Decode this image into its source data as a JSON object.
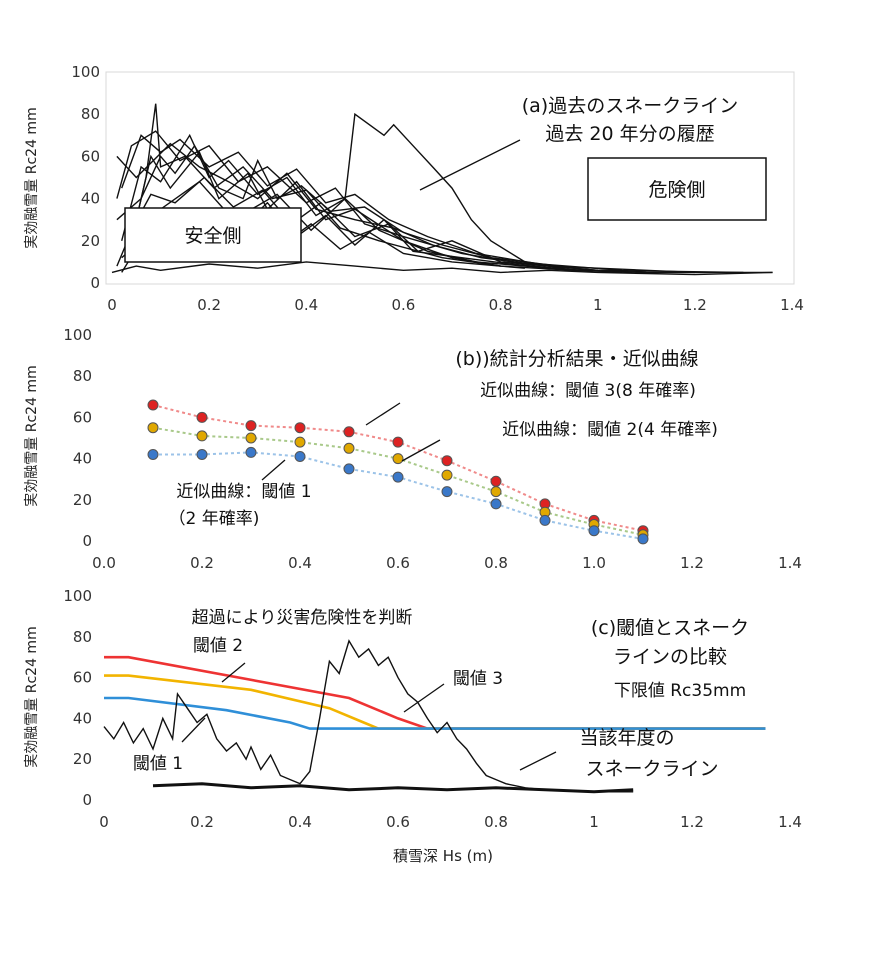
{
  "chart_data": [
    {
      "type": "line",
      "id": "a",
      "xlim": [
        0,
        1.4
      ],
      "ylim": [
        0,
        100
      ],
      "xticks": [
        "0",
        "0.2",
        "0.4",
        "0.6",
        "0.8",
        "1",
        "1.2",
        "1.4"
      ],
      "yticks": [
        "0",
        "20",
        "40",
        "60",
        "80",
        "100"
      ],
      "ylabel": "実効融雪量 Rc24 mm",
      "annotation_title": "(a)過去のスネークライン",
      "annotation_sub": "過去 20 年分の履歴",
      "box_safe": "安全側",
      "box_danger": "危険側",
      "series": [
        {
          "values": [
            [
              0.01,
              8
            ],
            [
              0.05,
              30
            ],
            [
              0.08,
              60
            ],
            [
              0.12,
              45
            ],
            [
              0.18,
              62
            ],
            [
              0.22,
              40
            ],
            [
              0.28,
              52
            ],
            [
              0.32,
              35
            ],
            [
              0.38,
              48
            ],
            [
              0.44,
              30
            ],
            [
              0.5,
              35
            ],
            [
              0.6,
              20
            ],
            [
              0.7,
              12
            ],
            [
              0.8,
              8
            ],
            [
              0.95,
              6
            ],
            [
              1.1,
              5
            ],
            [
              1.36,
              5
            ]
          ]
        },
        {
          "values": [
            [
              0.02,
              20
            ],
            [
              0.06,
              55
            ],
            [
              0.1,
              48
            ],
            [
              0.16,
              70
            ],
            [
              0.2,
              50
            ],
            [
              0.24,
              58
            ],
            [
              0.3,
              42
            ],
            [
              0.36,
              50
            ],
            [
              0.42,
              32
            ],
            [
              0.48,
              40
            ],
            [
              0.55,
              25
            ],
            [
              0.65,
              15
            ],
            [
              0.75,
              10
            ],
            [
              0.9,
              7
            ],
            [
              1.05,
              5
            ]
          ]
        },
        {
          "values": [
            [
              0.01,
              40
            ],
            [
              0.04,
              65
            ],
            [
              0.09,
              72
            ],
            [
              0.14,
              58
            ],
            [
              0.2,
              65
            ],
            [
              0.26,
              48
            ],
            [
              0.32,
              55
            ],
            [
              0.4,
              38
            ],
            [
              0.46,
              45
            ],
            [
              0.52,
              28
            ],
            [
              0.6,
              22
            ],
            [
              0.72,
              14
            ],
            [
              0.85,
              9
            ],
            [
              1.0,
              6
            ]
          ]
        },
        {
          "values": [
            [
              0.03,
              10
            ],
            [
              0.07,
              50
            ],
            [
              0.09,
              85
            ],
            [
              0.1,
              55
            ],
            [
              0.15,
              60
            ],
            [
              0.21,
              45
            ],
            [
              0.27,
              55
            ],
            [
              0.33,
              40
            ],
            [
              0.4,
              44
            ],
            [
              0.47,
              26
            ],
            [
              0.55,
              20
            ],
            [
              0.68,
              12
            ],
            [
              0.8,
              8
            ]
          ]
        },
        {
          "values": [
            [
              0.02,
              5
            ],
            [
              0.1,
              35
            ],
            [
              0.18,
              48
            ],
            [
              0.25,
              30
            ],
            [
              0.34,
              42
            ],
            [
              0.41,
              25
            ],
            [
              0.48,
              40
            ],
            [
              0.5,
              80
            ],
            [
              0.56,
              70
            ],
            [
              0.58,
              75
            ],
            [
              0.62,
              65
            ],
            [
              0.66,
              55
            ],
            [
              0.7,
              45
            ],
            [
              0.74,
              30
            ],
            [
              0.78,
              20
            ],
            [
              0.85,
              10
            ],
            [
              0.95,
              6
            ],
            [
              1.1,
              5
            ]
          ]
        },
        {
          "values": [
            [
              0.01,
              60
            ],
            [
              0.05,
              50
            ],
            [
              0.12,
              66
            ],
            [
              0.18,
              55
            ],
            [
              0.24,
              48
            ],
            [
              0.3,
              40
            ],
            [
              0.36,
              52
            ],
            [
              0.42,
              35
            ],
            [
              0.5,
              30
            ],
            [
              0.58,
              26
            ],
            [
              0.66,
              18
            ],
            [
              0.76,
              12
            ],
            [
              0.9,
              8
            ],
            [
              1.2,
              5
            ]
          ]
        },
        {
          "values": [
            [
              0.04,
              25
            ],
            [
              0.08,
              42
            ],
            [
              0.13,
              38
            ],
            [
              0.19,
              50
            ],
            [
              0.25,
              36
            ],
            [
              0.31,
              44
            ],
            [
              0.37,
              28
            ],
            [
              0.43,
              38
            ],
            [
              0.5,
              22
            ],
            [
              0.57,
              28
            ],
            [
              0.63,
              15
            ],
            [
              0.7,
              20
            ],
            [
              0.8,
              10
            ],
            [
              1.0,
              6
            ],
            [
              1.3,
              5
            ]
          ]
        },
        {
          "values": [
            [
              0.02,
              12
            ],
            [
              0.07,
              22
            ],
            [
              0.11,
              18
            ],
            [
              0.17,
              30
            ],
            [
              0.23,
              20
            ],
            [
              0.29,
              32
            ],
            [
              0.35,
              18
            ],
            [
              0.41,
              28
            ],
            [
              0.47,
              16
            ],
            [
              0.53,
              24
            ],
            [
              0.6,
              14
            ],
            [
              0.7,
              10
            ],
            [
              0.85,
              7
            ]
          ]
        },
        {
          "values": [
            [
              0.01,
              30
            ],
            [
              0.06,
              40
            ],
            [
              0.1,
              60
            ],
            [
              0.13,
              52
            ],
            [
              0.17,
              65
            ],
            [
              0.22,
              45
            ],
            [
              0.27,
              40
            ],
            [
              0.3,
              58
            ],
            [
              0.34,
              40
            ],
            [
              0.39,
              46
            ],
            [
              0.45,
              34
            ],
            [
              0.52,
              36
            ],
            [
              0.6,
              24
            ],
            [
              0.68,
              18
            ],
            [
              0.78,
              12
            ],
            [
              0.92,
              8
            ]
          ]
        },
        {
          "values": [
            [
              0.0,
              5
            ],
            [
              0.05,
              8
            ],
            [
              0.1,
              6
            ],
            [
              0.2,
              9
            ],
            [
              0.3,
              7
            ],
            [
              0.4,
              10
            ],
            [
              0.5,
              8
            ],
            [
              0.6,
              6
            ],
            [
              0.7,
              7
            ],
            [
              0.8,
              5
            ],
            [
              0.9,
              6
            ],
            [
              1.0,
              5
            ],
            [
              1.2,
              4
            ],
            [
              1.36,
              5
            ]
          ]
        },
        {
          "values": [
            [
              0.03,
              15
            ],
            [
              0.08,
              28
            ],
            [
              0.14,
              22
            ],
            [
              0.2,
              35
            ],
            [
              0.26,
              25
            ],
            [
              0.32,
              38
            ],
            [
              0.38,
              22
            ],
            [
              0.44,
              32
            ],
            [
              0.5,
              18
            ],
            [
              0.56,
              30
            ],
            [
              0.62,
              15
            ],
            [
              0.72,
              12
            ],
            [
              0.82,
              9
            ],
            [
              0.96,
              6
            ]
          ]
        },
        {
          "values": [
            [
              0.02,
              45
            ],
            [
              0.06,
              70
            ],
            [
              0.1,
              62
            ],
            [
              0.14,
              68
            ],
            [
              0.2,
              55
            ],
            [
              0.26,
              62
            ],
            [
              0.32,
              46
            ],
            [
              0.38,
              54
            ],
            [
              0.44,
              38
            ],
            [
              0.5,
              42
            ],
            [
              0.57,
              30
            ],
            [
              0.65,
              22
            ],
            [
              0.75,
              14
            ],
            [
              0.88,
              9
            ],
            [
              1.05,
              6
            ]
          ]
        }
      ]
    },
    {
      "type": "line",
      "id": "b",
      "xlim": [
        0,
        1.4
      ],
      "ylim": [
        0,
        100
      ],
      "xticks": [
        "0.0",
        "0.2",
        "0.4",
        "0.6",
        "0.8",
        "1.0",
        "1.2",
        "1.4"
      ],
      "yticks": [
        "0",
        "20",
        "40",
        "60",
        "80",
        "100"
      ],
      "ylabel": "実効融雪量 Rc24 mm",
      "annotation_title": "(b))統計分析結果・近似曲線",
      "label3": "近似曲線：閾値 3(8 年確率)",
      "label2": "近似曲線：閾値 2(4 年確率)",
      "label1a": "近似曲線：閾値 1",
      "label1b": "（2 年確率)",
      "x": [
        0.1,
        0.2,
        0.3,
        0.4,
        0.5,
        0.6,
        0.7,
        0.8,
        0.9,
        1.0,
        1.1
      ],
      "series": [
        {
          "values": [
            66,
            60,
            56,
            55,
            53,
            48,
            39,
            29,
            18,
            10,
            5
          ],
          "color": "#dd2222",
          "line": "#f08a8a"
        },
        {
          "values": [
            55,
            51,
            50,
            48,
            45,
            40,
            32,
            24,
            14,
            8,
            3
          ],
          "color": "#e0a800",
          "line": "#a9c98a"
        },
        {
          "values": [
            42,
            42,
            43,
            41,
            35,
            31,
            24,
            18,
            10,
            5,
            1
          ],
          "color": "#3a78c9",
          "line": "#9cc3e8"
        }
      ]
    },
    {
      "type": "line",
      "id": "c",
      "xlim": [
        0,
        1.4
      ],
      "ylim": [
        0,
        100
      ],
      "xticks": [
        "0",
        "0.2",
        "0.4",
        "0.6",
        "0.8",
        "1",
        "1.2",
        "1.4"
      ],
      "yticks": [
        "0",
        "20",
        "40",
        "60",
        "80",
        "100"
      ],
      "ylabel": "実効融雪量 Rc24 mm",
      "xlabel": "積雪深 Hs (m)",
      "annotation_top": "超過により災害危険性を判断",
      "annotation_title1": "(c)閾値とスネーク",
      "annotation_title2": "ラインの比較",
      "annotation_title3": "下限値 Rc35mm",
      "label_t1": "閾値 1",
      "label_t2": "閾値 2",
      "label_t3": "閾値 3",
      "label_cur1": "当該年度の",
      "label_cur2": "スネークライン",
      "thresholds": [
        {
          "name": "閾値 3",
          "color": "#ee3333",
          "values": [
            [
              0,
              70
            ],
            [
              0.05,
              70
            ],
            [
              0.5,
              50
            ],
            [
              0.6,
              40
            ],
            [
              0.66,
              35
            ],
            [
              1.35,
              35
            ]
          ]
        },
        {
          "name": "閾値 2",
          "color": "#f2b400",
          "values": [
            [
              0,
              61
            ],
            [
              0.05,
              61
            ],
            [
              0.3,
              54
            ],
            [
              0.46,
              45
            ],
            [
              0.53,
              38
            ],
            [
              0.56,
              35
            ],
            [
              1.35,
              35
            ]
          ]
        },
        {
          "name": "閾値 1",
          "color": "#2f8fd8",
          "values": [
            [
              0,
              50
            ],
            [
              0.05,
              50
            ],
            [
              0.25,
              44
            ],
            [
              0.38,
              38
            ],
            [
              0.42,
              35
            ],
            [
              1.35,
              35
            ]
          ]
        }
      ],
      "current": [
        [
          0,
          36
        ],
        [
          0.02,
          30
        ],
        [
          0.04,
          38
        ],
        [
          0.06,
          28
        ],
        [
          0.08,
          35
        ],
        [
          0.1,
          25
        ],
        [
          0.12,
          40
        ],
        [
          0.14,
          30
        ],
        [
          0.15,
          52
        ],
        [
          0.17,
          45
        ],
        [
          0.19,
          38
        ],
        [
          0.21,
          42
        ],
        [
          0.23,
          30
        ],
        [
          0.25,
          24
        ],
        [
          0.27,
          28
        ],
        [
          0.29,
          20
        ],
        [
          0.3,
          26
        ],
        [
          0.32,
          15
        ],
        [
          0.34,
          22
        ],
        [
          0.36,
          12
        ],
        [
          0.38,
          10
        ],
        [
          0.4,
          8
        ],
        [
          0.42,
          14
        ],
        [
          0.44,
          40
        ],
        [
          0.46,
          68
        ],
        [
          0.48,
          62
        ],
        [
          0.5,
          78
        ],
        [
          0.52,
          70
        ],
        [
          0.54,
          74
        ],
        [
          0.56,
          66
        ],
        [
          0.58,
          70
        ],
        [
          0.6,
          60
        ],
        [
          0.62,
          52
        ],
        [
          0.64,
          48
        ],
        [
          0.66,
          40
        ],
        [
          0.68,
          33
        ],
        [
          0.7,
          38
        ],
        [
          0.72,
          30
        ],
        [
          0.74,
          25
        ],
        [
          0.76,
          18
        ],
        [
          0.78,
          12
        ],
        [
          0.8,
          10
        ],
        [
          0.82,
          8
        ],
        [
          0.86,
          6
        ],
        [
          0.9,
          5
        ],
        [
          1.0,
          4
        ],
        [
          1.08,
          4
        ]
      ],
      "base": [
        [
          0.1,
          7
        ],
        [
          0.2,
          8
        ],
        [
          0.3,
          6
        ],
        [
          0.4,
          7
        ],
        [
          0.5,
          5
        ],
        [
          0.6,
          6
        ],
        [
          0.7,
          5
        ],
        [
          0.8,
          6
        ],
        [
          0.9,
          5
        ],
        [
          1.0,
          4
        ],
        [
          1.08,
          5
        ]
      ]
    }
  ]
}
